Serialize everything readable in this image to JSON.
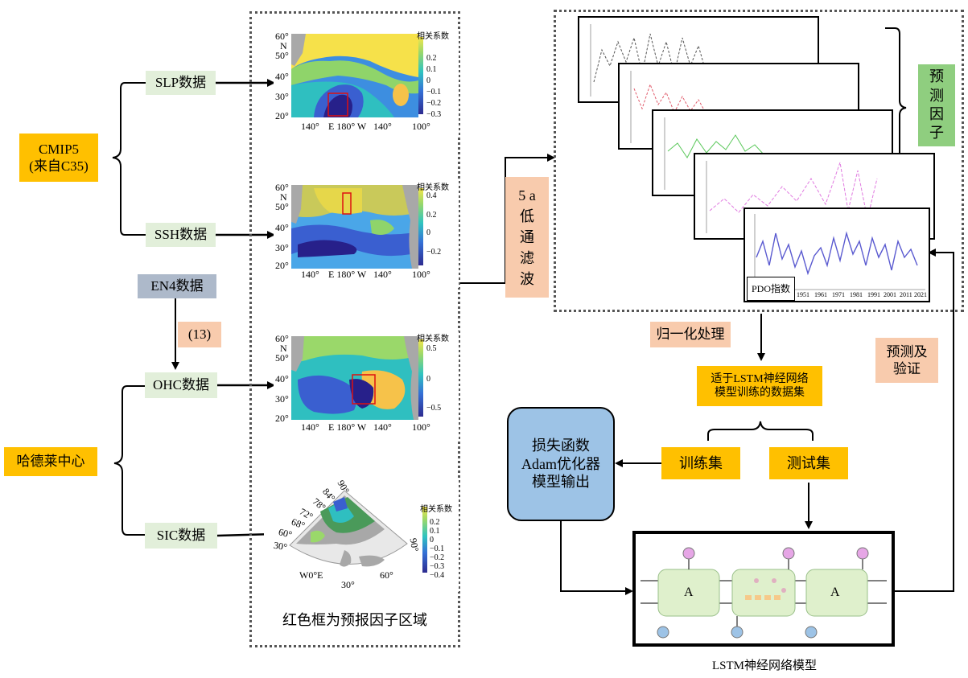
{
  "sources": {
    "cmip5": "CMIP5\n(来自C35)",
    "hadley": "哈德莱中心",
    "en4": "EN4数据",
    "en4_ref": "(13)"
  },
  "data_boxes": {
    "slp": "SLP数据",
    "ssh": "SSH数据",
    "ohc": "OHC数据",
    "sic": "SIC数据"
  },
  "maps": {
    "colorbar_title": "相关系数",
    "lat_labels": [
      "60°",
      "N",
      "50°",
      "40°",
      "30°",
      "20°"
    ],
    "lon_labels": [
      "140°",
      "E 180° W",
      "140°",
      "100°"
    ],
    "slp_ticks": [
      "0.2",
      "0.1",
      "0",
      "−0.1",
      "−0.2",
      "−0.3"
    ],
    "ssh_ticks": [
      "0.4",
      "0.2",
      "0",
      "−0.2"
    ],
    "ohc_ticks": [
      "0.5",
      "0",
      "−0.5"
    ],
    "sic_ticks": [
      "0.2",
      "0.1",
      "0",
      "−0.1",
      "−0.2",
      "−0.3",
      "−0.4"
    ],
    "polar_labels": [
      "90°",
      "84°",
      "78°",
      "72°",
      "68°",
      "60°",
      "30°",
      "W0°E",
      "30°",
      "60°",
      "90°"
    ],
    "caption": "红色框为预报因子区域"
  },
  "filter": "5 a\n低\n通\n滤\n波",
  "predictors": {
    "label": "预\n测\n因\n子",
    "pdo_label": "PDO指数",
    "pdo_years": [
      "1951",
      "1961",
      "1971",
      "1981",
      "1991",
      "2001",
      "2011",
      "2021"
    ]
  },
  "steps": {
    "normalize": "归一化处理",
    "dataset": "适于LSTM神经网络\n模型训练的数据集",
    "train": "训练集",
    "test": "测试集",
    "loss": "损失函数\nAdam优化器\n模型输出",
    "predict": "预测及\n验证",
    "lstm_caption": "LSTM神经网络模型",
    "cell_a1": "A",
    "cell_a2": "A"
  },
  "colors": {
    "yellow": "#ffc000",
    "light_green": "#e2efda",
    "peach": "#f8cbad",
    "grey_blue": "#adb9ca",
    "green": "#8fce7f",
    "blue_box": "#9dc3e6"
  }
}
